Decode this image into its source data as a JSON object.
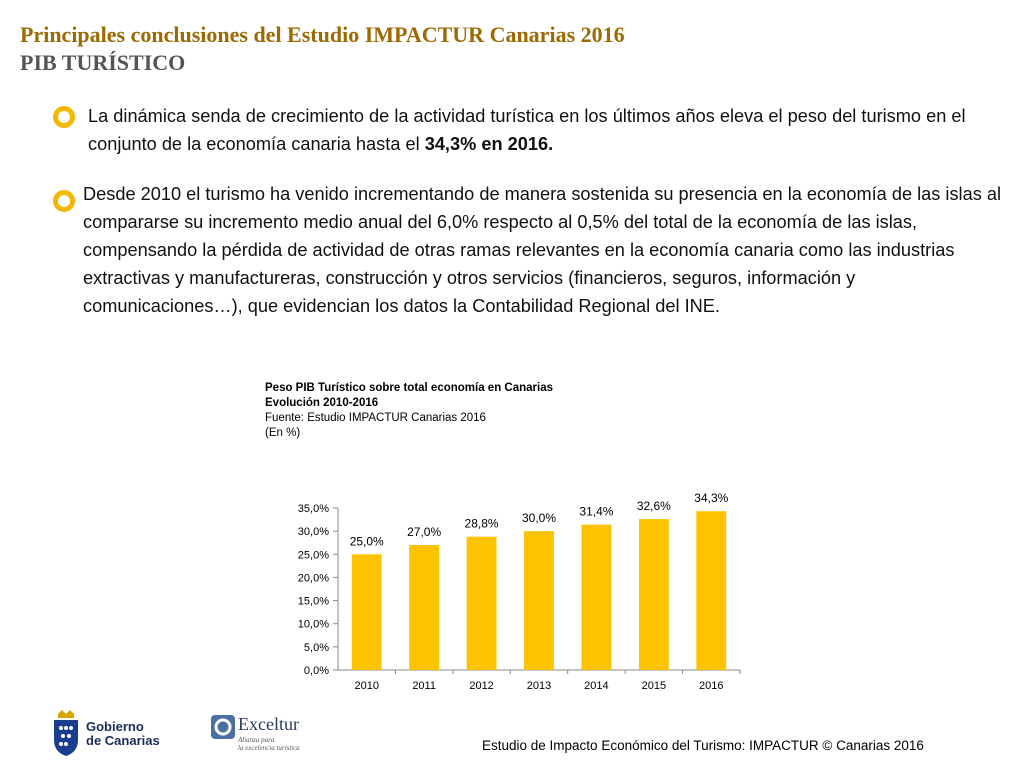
{
  "header": {
    "title": "Principales conclusiones del Estudio IMPACTUR Canarias 2016",
    "subtitle": "PIB TURÍSTICO"
  },
  "bullets": [
    {
      "text_before": "La dinámica senda de crecimiento de la actividad turística en los últimos años eleva el peso del turismo en el conjunto de la economía canaria hasta el ",
      "text_bold": "34,3% en 2016."
    },
    {
      "text": "Desde 2010 el turismo  ha venido incrementando de manera sostenida su presencia en la economía de las islas al compararse su incremento medio anual del 6,0% respecto al 0,5% del total de la economía de las islas, compensando  la pérdida de actividad de otras ramas relevantes en la economía canaria como las industrias extractivas y manufactureras, construcción y otros servicios (financieros, seguros, información y comunicaciones…), que evidencian los datos la Contabilidad Regional del INE."
    }
  ],
  "chart_caption": {
    "line1": "Peso PIB Turístico sobre total economía en Canarias",
    "line2": "Evolución 2010-2016",
    "line3": "Fuente: Estudio IMPACTUR Canarias 2016",
    "line4": "(En %)"
  },
  "chart_data": {
    "type": "bar",
    "title": "Peso PIB Turístico sobre total economía en Canarias",
    "categories": [
      "2010",
      "2011",
      "2012",
      "2013",
      "2014",
      "2015",
      "2016"
    ],
    "values": [
      25.0,
      27.0,
      28.8,
      30.0,
      31.4,
      32.6,
      34.3
    ],
    "value_labels": [
      "25,0%",
      "27,0%",
      "28,8%",
      "30,0%",
      "31,4%",
      "32,6%",
      "34,3%"
    ],
    "ylim": [
      0,
      35
    ],
    "yticks": [
      0,
      5,
      10,
      15,
      20,
      25,
      30,
      35
    ],
    "ytick_labels": [
      "0,0%",
      "5,0%",
      "10,0%",
      "15,0%",
      "20,0%",
      "25,0%",
      "30,0%",
      "35,0%"
    ],
    "bar_color": "#fdc300",
    "grid": false,
    "legend": "none"
  },
  "logos": {
    "gobierno_line1": "Gobierno",
    "gobierno_line2": "de Canarias",
    "exceltur_word": "Exceltur",
    "exceltur_tag_line1": "Alianza para",
    "exceltur_tag_line2": "la excelencia turística"
  },
  "footer": {
    "text": "Estudio de Impacto Económico del Turismo: IMPACTUR © Canarias 2016"
  },
  "colors": {
    "title": "#9c6a00",
    "subtitle": "#555555",
    "bullet": "#f4b800",
    "bar": "#fdc300"
  }
}
